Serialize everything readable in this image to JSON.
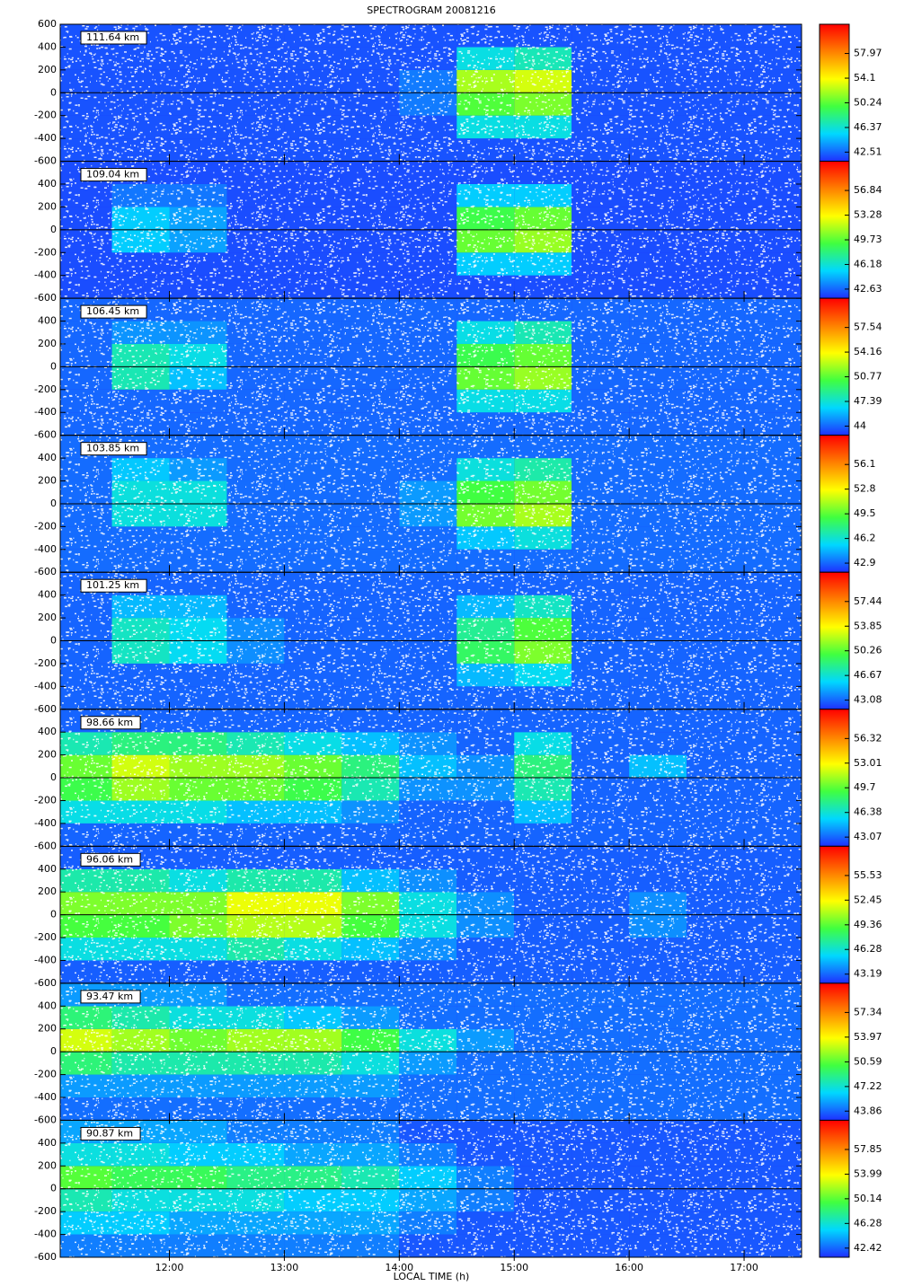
{
  "chart_data": {
    "type": "heatmap",
    "title": "SPECTROGRAM 20081216",
    "xlabel": "LOCAL TIME (h)",
    "xlim": [
      11.05,
      17.5
    ],
    "xticks": [
      {
        "value": 12,
        "label": "12:00"
      },
      {
        "value": 13,
        "label": "13:00"
      },
      {
        "value": 14,
        "label": "14:00"
      },
      {
        "value": 15,
        "label": "15:00"
      },
      {
        "value": 16,
        "label": "16:00"
      },
      {
        "value": 17,
        "label": "17:00"
      }
    ],
    "x_edges": [
      11,
      11.5,
      12,
      12.5,
      13,
      13.5,
      14,
      14.5,
      15,
      15.5,
      16,
      16.5,
      17,
      17.5
    ],
    "ylim": [
      -600,
      600
    ],
    "yticks": [
      -600,
      -400,
      -200,
      0,
      200,
      400,
      600
    ],
    "y_edges": [
      -600,
      -400,
      -200,
      0,
      200,
      400,
      600
    ],
    "colorscale": [
      "#1f2fff",
      "#00d8ff",
      "#40ff40",
      "#ffff00",
      "#ff8000",
      "#ff0000"
    ],
    "panels": [
      {
        "label": "111.64 km",
        "clim": [
          41.08,
          62.55
        ],
        "cticks": [
          42.51,
          46.37,
          50.24,
          54.1,
          57.97
        ],
        "values": [
          [
            42,
            42,
            42,
            42,
            42,
            42,
            42,
            42,
            42,
            42,
            42,
            42,
            42
          ],
          [
            42,
            42,
            42,
            42,
            42,
            42,
            42,
            46,
            46,
            42,
            42,
            42,
            42
          ],
          [
            42,
            42,
            42,
            42,
            42,
            42,
            43,
            50,
            51,
            42,
            42,
            42,
            42
          ],
          [
            42,
            42,
            42,
            42,
            42,
            42,
            43,
            52,
            53,
            42,
            42,
            42,
            42
          ],
          [
            42,
            42,
            42,
            42,
            42,
            42,
            42,
            46,
            47,
            42,
            42,
            42,
            42
          ],
          [
            42,
            42,
            42,
            42,
            42,
            42,
            42,
            42,
            42,
            42,
            42,
            42,
            42
          ]
        ]
      },
      {
        "label": "109.04 km",
        "clim": [
          41.31,
          61.05
        ],
        "cticks": [
          42.63,
          46.18,
          49.73,
          53.28,
          56.84
        ],
        "values": [
          [
            42,
            42,
            42,
            42,
            42,
            42,
            42,
            42,
            42,
            42,
            42,
            42,
            42
          ],
          [
            42,
            42,
            42,
            42,
            42,
            42,
            42,
            45,
            45,
            42,
            42,
            42,
            42
          ],
          [
            42,
            45,
            44,
            42,
            42,
            42,
            42,
            50,
            51,
            42,
            42,
            42,
            42
          ],
          [
            42,
            45,
            44,
            42,
            42,
            42,
            42,
            49,
            50,
            42,
            42,
            42,
            42
          ],
          [
            42,
            43,
            43,
            42,
            42,
            42,
            42,
            45,
            45,
            42,
            42,
            42,
            42
          ],
          [
            42,
            42,
            42,
            42,
            42,
            42,
            42,
            42,
            42,
            42,
            42,
            42,
            42
          ]
        ]
      },
      {
        "label": "106.45 km",
        "clim": [
          42.75,
          61.55
        ],
        "cticks": [
          44.0,
          47.39,
          50.77,
          54.16,
          57.54
        ],
        "values": [
          [
            44,
            44,
            44,
            44,
            44,
            44,
            44,
            44,
            44,
            44,
            44,
            44,
            44
          ],
          [
            44,
            44,
            44,
            44,
            44,
            44,
            44,
            47,
            47,
            44,
            44,
            44,
            44
          ],
          [
            44,
            48,
            46,
            44,
            44,
            44,
            44,
            51,
            52,
            44,
            44,
            44,
            44
          ],
          [
            44,
            48,
            47,
            44,
            44,
            44,
            44,
            50,
            51,
            44,
            44,
            44,
            44
          ],
          [
            44,
            45,
            45,
            44,
            44,
            44,
            44,
            47,
            48,
            44,
            44,
            44,
            44
          ],
          [
            44,
            44,
            44,
            44,
            44,
            44,
            44,
            44,
            44,
            44,
            44,
            44,
            44
          ]
        ]
      },
      {
        "label": "103.85 km",
        "clim": [
          41.68,
          60.01
        ],
        "cticks": [
          42.9,
          46.2,
          49.5,
          52.8,
          56.1
        ],
        "values": [
          [
            43,
            43,
            43,
            43,
            43,
            43,
            43,
            43,
            43,
            43,
            43,
            43,
            43
          ],
          [
            43,
            43,
            43,
            43,
            43,
            43,
            43,
            45,
            46,
            43,
            43,
            43,
            43
          ],
          [
            43,
            46,
            46,
            43,
            43,
            43,
            44,
            50,
            51,
            43,
            43,
            43,
            43
          ],
          [
            43,
            46,
            46,
            43,
            43,
            43,
            44,
            49,
            50,
            43,
            43,
            43,
            43
          ],
          [
            43,
            45,
            44,
            43,
            43,
            43,
            43,
            46,
            47,
            43,
            43,
            43,
            43
          ],
          [
            43,
            43,
            43,
            43,
            43,
            43,
            43,
            43,
            43,
            43,
            43,
            43,
            43
          ]
        ]
      },
      {
        "label": "101.25 km",
        "clim": [
          41.75,
          61.7
        ],
        "cticks": [
          43.08,
          46.67,
          50.26,
          53.85,
          57.44
        ],
        "values": [
          [
            43,
            43,
            43,
            43,
            43,
            43,
            43,
            43,
            43,
            43,
            43,
            43,
            43
          ],
          [
            43,
            43,
            43,
            43,
            43,
            43,
            43,
            45,
            46,
            43,
            43,
            43,
            43
          ],
          [
            43,
            47,
            46,
            44,
            43,
            43,
            43,
            49,
            51,
            43,
            43,
            43,
            43
          ],
          [
            43,
            47,
            46,
            44,
            43,
            43,
            43,
            48,
            50,
            43,
            43,
            43,
            43
          ],
          [
            43,
            45,
            45,
            43,
            43,
            43,
            43,
            45,
            47,
            43,
            43,
            43,
            43
          ],
          [
            43,
            43,
            43,
            43,
            43,
            43,
            43,
            43,
            43,
            43,
            43,
            43,
            43
          ]
        ]
      },
      {
        "label": "98.66 km",
        "clim": [
          41.84,
          60.25
        ],
        "cticks": [
          43.07,
          46.38,
          49.7,
          53.01,
          56.32
        ],
        "values": [
          [
            43,
            43,
            43,
            43,
            43,
            43,
            43,
            43,
            43,
            43,
            43,
            43,
            43
          ],
          [
            46,
            46,
            46,
            45,
            45,
            44,
            43,
            43,
            45,
            43,
            43,
            43,
            43
          ],
          [
            49,
            51,
            50,
            50,
            49,
            47,
            44,
            44,
            47,
            43,
            43,
            43,
            43
          ],
          [
            50,
            52,
            51,
            51,
            50,
            48,
            45,
            44,
            48,
            43,
            45,
            43,
            43
          ],
          [
            47,
            48,
            48,
            47,
            46,
            45,
            44,
            43,
            46,
            43,
            43,
            43,
            43
          ],
          [
            43,
            43,
            43,
            43,
            43,
            43,
            43,
            43,
            43,
            43,
            43,
            43,
            43
          ]
        ]
      },
      {
        "label": "96.06 km",
        "clim": [
          42.05,
          59.19
        ],
        "cticks": [
          43.19,
          46.28,
          49.36,
          52.45,
          55.53
        ],
        "values": [
          [
            43,
            43,
            43,
            43,
            43,
            43,
            43,
            43,
            43,
            43,
            43,
            43,
            43
          ],
          [
            46,
            46,
            46,
            47,
            46,
            45,
            44,
            43,
            43,
            43,
            43,
            43,
            43
          ],
          [
            49,
            49,
            50,
            51,
            51,
            49,
            46,
            44,
            43,
            43,
            44,
            43,
            43
          ],
          [
            50,
            50,
            50,
            52,
            52,
            50,
            46,
            44,
            43,
            43,
            44,
            43,
            43
          ],
          [
            47,
            47,
            46,
            47,
            47,
            45,
            44,
            43,
            43,
            43,
            43,
            43,
            43
          ],
          [
            43,
            43,
            43,
            43,
            43,
            43,
            43,
            43,
            43,
            43,
            43,
            43,
            43
          ]
        ]
      },
      {
        "label": "93.47 km",
        "clim": [
          42.61,
          61.33
        ],
        "cticks": [
          43.86,
          47.22,
          50.59,
          53.97,
          57.34
        ],
        "values": [
          [
            44,
            44,
            44,
            44,
            44,
            44,
            44,
            44,
            44,
            44,
            44,
            44,
            44
          ],
          [
            45,
            45,
            45,
            45,
            45,
            45,
            44,
            44,
            44,
            44,
            44,
            44,
            44
          ],
          [
            49,
            48,
            48,
            48,
            48,
            47,
            45,
            44,
            44,
            44,
            44,
            44,
            44
          ],
          [
            53,
            52,
            51,
            52,
            52,
            50,
            47,
            45,
            44,
            44,
            44,
            44,
            44
          ],
          [
            49,
            48,
            47,
            47,
            46,
            45,
            44,
            44,
            44,
            44,
            44,
            44,
            44
          ],
          [
            45,
            45,
            45,
            44,
            44,
            44,
            44,
            44,
            44,
            44,
            44,
            44,
            44
          ]
        ]
      },
      {
        "label": "90.87 km",
        "clim": [
          40.99,
          62.42
        ],
        "cticks": [
          42.42,
          46.28,
          50.14,
          53.99,
          57.85
        ],
        "values": [
          [
            43,
            43,
            43,
            43,
            43,
            43,
            42,
            42,
            42,
            42,
            42,
            42,
            42
          ],
          [
            45,
            45,
            44,
            44,
            44,
            44,
            43,
            42,
            42,
            42,
            42,
            42,
            42
          ],
          [
            47,
            46,
            46,
            46,
            45,
            45,
            44,
            43,
            42,
            42,
            42,
            42,
            42
          ],
          [
            50,
            49,
            49,
            48,
            48,
            47,
            45,
            43,
            42,
            42,
            42,
            42,
            42
          ],
          [
            46,
            46,
            45,
            45,
            44,
            44,
            43,
            42,
            42,
            42,
            42,
            42,
            42
          ],
          [
            44,
            44,
            44,
            43,
            43,
            43,
            42,
            42,
            42,
            42,
            42,
            42,
            42
          ]
        ]
      }
    ]
  }
}
